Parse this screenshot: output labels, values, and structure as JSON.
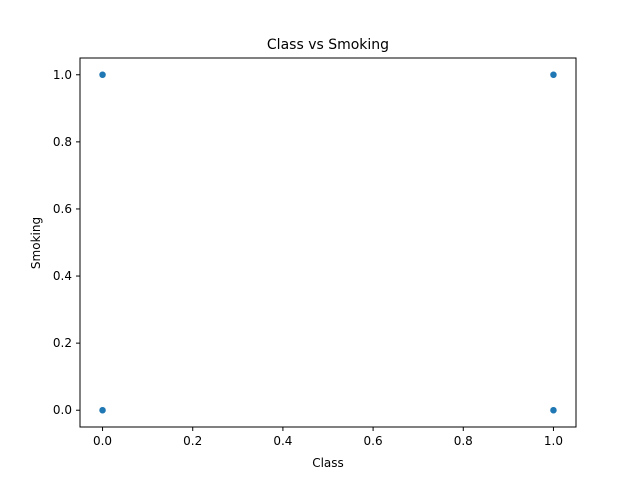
{
  "chart_data": {
    "type": "scatter",
    "title": "Class vs Smoking",
    "xlabel": "Class",
    "ylabel": "Smoking",
    "xlim": [
      -0.05,
      1.05
    ],
    "ylim": [
      -0.05,
      1.05
    ],
    "xticks": [
      0.0,
      0.2,
      0.4,
      0.6,
      0.8,
      1.0
    ],
    "xtick_labels": [
      "0.0",
      "0.2",
      "0.4",
      "0.6",
      "0.8",
      "1.0"
    ],
    "yticks": [
      0.0,
      0.2,
      0.4,
      0.6,
      0.8,
      1.0
    ],
    "ytick_labels": [
      "0.0",
      "0.2",
      "0.4",
      "0.6",
      "0.8",
      "1.0"
    ],
    "points": [
      {
        "x": 0,
        "y": 1
      },
      {
        "x": 0,
        "y": 0
      },
      {
        "x": 1,
        "y": 1
      },
      {
        "x": 1,
        "y": 0
      }
    ],
    "marker_color": "#1f77b4",
    "grid": false
  }
}
